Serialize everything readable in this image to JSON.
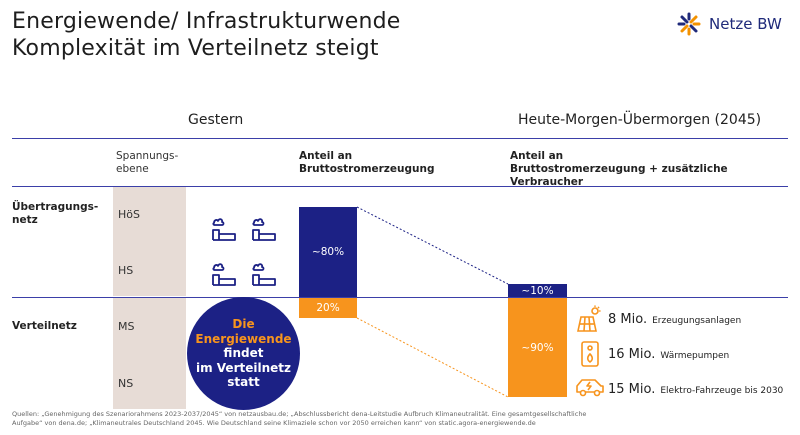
{
  "title": {
    "line1": "Energiewende/ Infrastrukturwende",
    "line2": "Komplexität im Verteilnetz steigt"
  },
  "logo": {
    "text": "Netze BW",
    "icon": "netze-bw-star-logo",
    "color_primary": "#1f2a7a",
    "color_accent": "#f39200"
  },
  "sections": {
    "left": "Gestern",
    "right": "Heute-Morgen-Übermorgen (2045)"
  },
  "columns": {
    "voltage_head": [
      "Spannungs-",
      "ebene"
    ],
    "share_head": [
      "Anteil an",
      "Bruttostromerzeugung"
    ],
    "future_head": [
      "Anteil an",
      "Bruttostromerzeugung + zusätzliche Verbraucher"
    ]
  },
  "rows": {
    "transmission": [
      "Übertragungs-",
      "netz"
    ],
    "distribution": "Verteilnetz"
  },
  "voltage_levels": [
    "HöS",
    "HS",
    "MS",
    "NS"
  ],
  "icons": [
    "power-plant-icon",
    "power-plant-icon",
    "power-plant-icon",
    "power-plant-icon"
  ],
  "bars": {
    "yesterday": {
      "transmission_share": "~80%",
      "distribution_share": "20%",
      "transmission_value": 80,
      "distribution_value": 20
    },
    "future": {
      "transmission_share": "~10%",
      "distribution_share": "~90%",
      "transmission_value": 10,
      "distribution_value": 90
    }
  },
  "circle": {
    "line1": "Die",
    "line2": "Energiewende",
    "line3": "findet",
    "line4": "im Verteilnetz",
    "line5": "statt"
  },
  "stats": [
    {
      "number": "8 Mio.",
      "desc": "Erzeugungsanlagen",
      "icon": "solar-wind-icon"
    },
    {
      "number": "16 Mio.",
      "desc": "Wärmepumpen",
      "icon": "heat-pump-icon"
    },
    {
      "number": "15 Mio.",
      "desc": "Elektro-Fahrzeuge bis 2030",
      "icon": "electric-car-icon"
    }
  ],
  "source": {
    "line1": "Quellen: „Genehmigung des Szenariorahmens 2023-2037/2045“ von netzausbau.de; „Abschlussbericht dena-Leitstudie Aufbruch Klimaneutralität. Eine gesamtgesellschaftliche",
    "line2": "Aufgabe“ von dena.de; „Klimaneutrales Deutschland 2045. Wie Deutschland seine Klimaziele schon vor 2050 erreichen kann“ von static.agora-energiewende.de"
  },
  "colors": {
    "navy": "#1c2185",
    "orange": "#f7941d",
    "beige": "#e7dcd6",
    "line": "#3b3fa8"
  }
}
